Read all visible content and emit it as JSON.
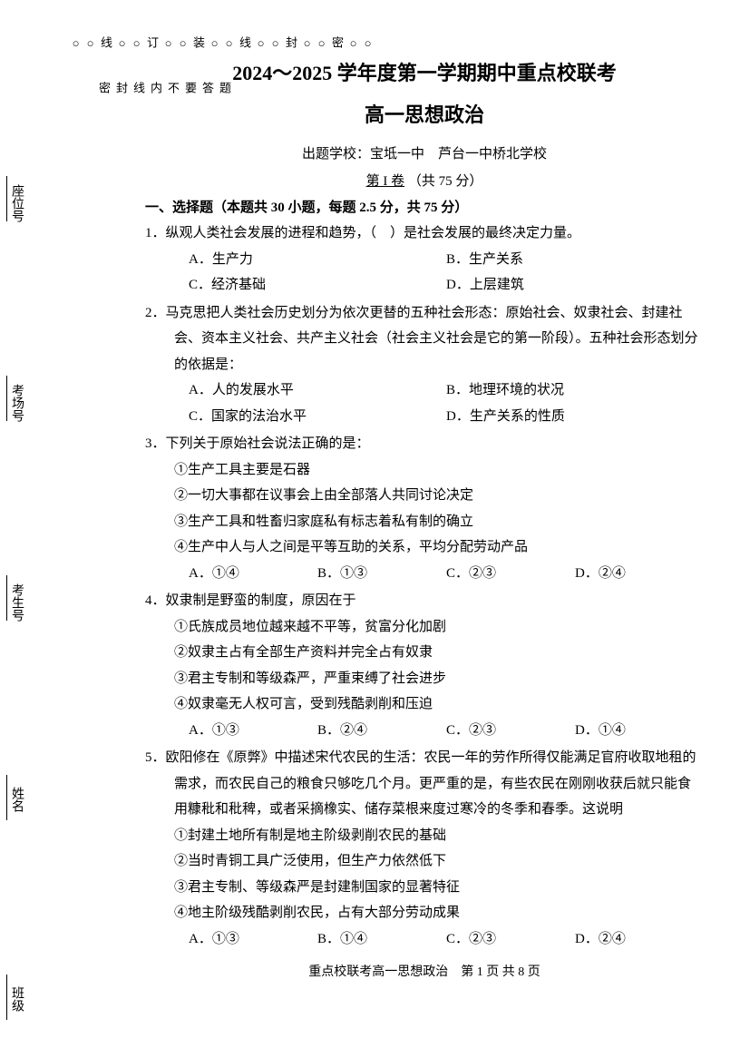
{
  "header": {
    "title_main": "2024～2025 学年度第一学期期中重点校联考",
    "title_sub": "高一思想政治",
    "school_info": "出题学校：宝坻一中　芦台一中桥北学校",
    "volume_label": "第 I 卷",
    "volume_score": "（共 75 分）"
  },
  "section": {
    "header": "一、选择题（本题共 30 小题，每题 2.5 分，共 75 分）"
  },
  "questions": [
    {
      "num": "1．",
      "text": "纵观人类社会发展的进程和趋势，（　）是社会发展的最终决定力量。",
      "options_layout": "2col",
      "options": [
        {
          "label": "A．",
          "text": "生产力"
        },
        {
          "label": "B．",
          "text": "生产关系"
        },
        {
          "label": "C．",
          "text": "经济基础"
        },
        {
          "label": "D．",
          "text": "上层建筑"
        }
      ]
    },
    {
      "num": "2．",
      "text": "马克思把人类社会历史划分为依次更替的五种社会形态：原始社会、奴隶社会、封建社会、资本主义社会、共产主义社会（社会主义社会是它的第一阶段）。五种社会形态划分的依据是：",
      "options_layout": "2col",
      "options": [
        {
          "label": "A．",
          "text": "人的发展水平"
        },
        {
          "label": "B．",
          "text": "地理环境的状况"
        },
        {
          "label": "C．",
          "text": "国家的法治水平"
        },
        {
          "label": "D．",
          "text": "生产关系的性质"
        }
      ]
    },
    {
      "num": "3．",
      "text": "下列关于原始社会说法正确的是：",
      "sub_items": [
        "①生产工具主要是石器",
        "②一切大事都在议事会上由全部落人共同讨论决定",
        "③生产工具和牲畜归家庭私有标志着私有制的确立",
        "④生产中人与人之间是平等互助的关系，平均分配劳动产品"
      ],
      "options_layout": "4col",
      "options": [
        {
          "label": "A．",
          "text": "①④"
        },
        {
          "label": "B．",
          "text": "①③"
        },
        {
          "label": "C．",
          "text": "②③"
        },
        {
          "label": "D．",
          "text": "②④"
        }
      ]
    },
    {
      "num": "4．",
      "text": "奴隶制是野蛮的制度，原因在于",
      "sub_items": [
        "①氏族成员地位越来越不平等，贫富分化加剧",
        "②奴隶主占有全部生产资料并完全占有奴隶",
        "③君主专制和等级森严，严重束缚了社会进步",
        "④奴隶毫无人权可言，受到残酷剥削和压迫"
      ],
      "options_layout": "4col",
      "options": [
        {
          "label": "A．",
          "text": "①③"
        },
        {
          "label": "B．",
          "text": "②④"
        },
        {
          "label": "C．",
          "text": "②③"
        },
        {
          "label": "D．",
          "text": "①④"
        }
      ]
    },
    {
      "num": "5．",
      "text": "欧阳修在《原弊》中描述宋代农民的生活：农民一年的劳作所得仅能满足官府收取地租的需求，而农民自己的粮食只够吃几个月。更严重的是，有些农民在刚刚收获后就只能食用糠秕和秕稗，或者采摘橡实、储存菜根来度过寒冷的冬季和春季。这说明",
      "sub_items": [
        "①封建土地所有制是地主阶级剥削农民的基础",
        "②当时青铜工具广泛使用，但生产力依然低下",
        "③君主专制、等级森严是封建制国家的显著特征",
        "④地主阶级残酷剥削农民，占有大部分劳动成果"
      ],
      "options_layout": "4col",
      "options": [
        {
          "label": "A．",
          "text": "①③"
        },
        {
          "label": "B．",
          "text": "①④"
        },
        {
          "label": "C．",
          "text": "②③"
        },
        {
          "label": "D．",
          "text": "②④"
        }
      ]
    }
  ],
  "footer": {
    "text": "重点校联考高一思想政治　第 1 页 共 8 页"
  },
  "left_margin": {
    "fields": [
      "班级",
      "姓名",
      "考生号",
      "考场号",
      "座位号"
    ],
    "binding_text_chars": [
      "密",
      "封",
      "线",
      "内",
      "不",
      "要",
      "答",
      "题"
    ],
    "seal_chars": [
      "密",
      "封",
      "线",
      "装",
      "订",
      "线"
    ]
  }
}
